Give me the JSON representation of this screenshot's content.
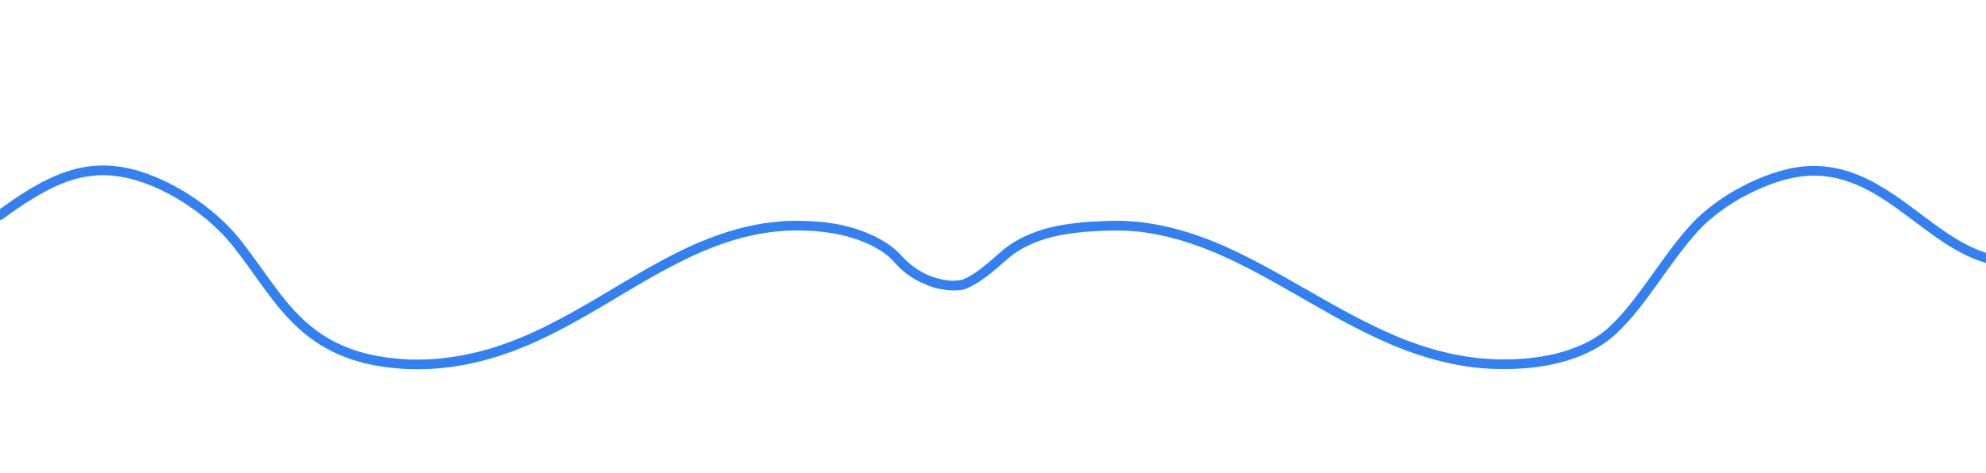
{
  "colors": {
    "background": "#ffffff",
    "wave_stroke": "#3380f2"
  },
  "shape": {
    "kind": "wavy-line"
  }
}
